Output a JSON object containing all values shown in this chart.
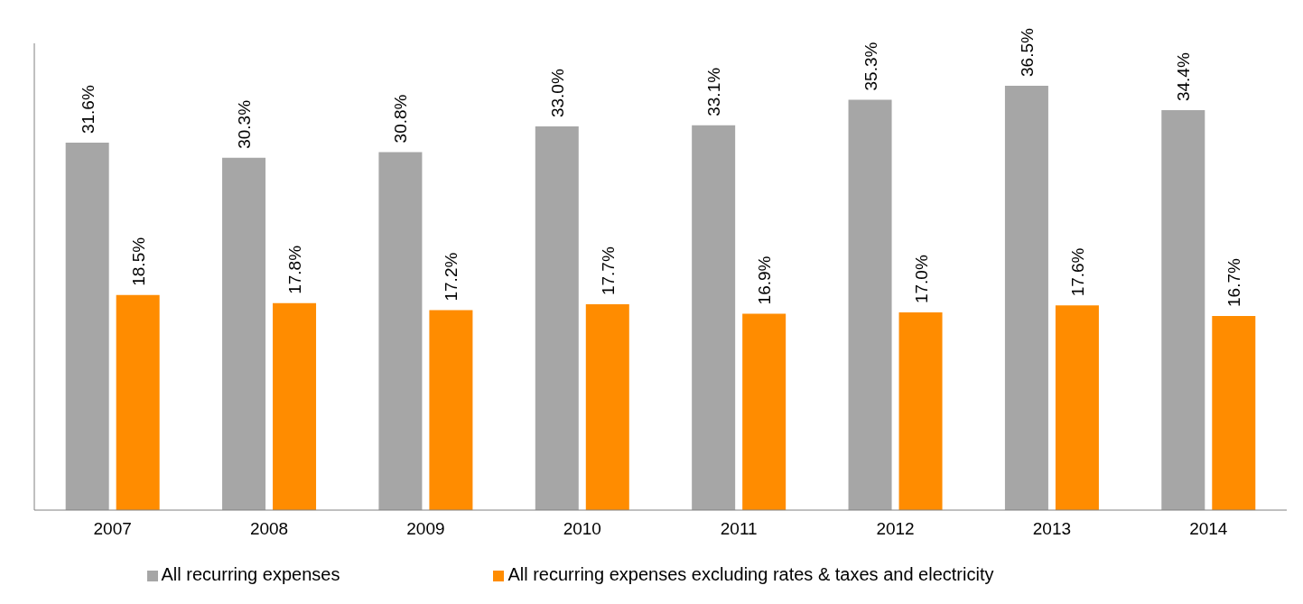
{
  "chart_data": {
    "type": "bar",
    "categories": [
      "2007",
      "2008",
      "2009",
      "2010",
      "2011",
      "2012",
      "2013",
      "2014"
    ],
    "series": [
      {
        "name": "All recurring expenses",
        "color": "#a6a6a6",
        "values": [
          31.6,
          30.3,
          30.8,
          33.0,
          33.1,
          35.3,
          36.5,
          34.4
        ],
        "value_labels": [
          "31.6%",
          "30.3%",
          "30.8%",
          "33.0%",
          "33.1%",
          "35.3%",
          "36.5%",
          "34.4%"
        ]
      },
      {
        "name": "All recurring expenses excluding rates & taxes and electricity",
        "color": "#ff8c00",
        "values": [
          18.5,
          17.8,
          17.2,
          17.7,
          16.9,
          17.0,
          17.6,
          16.7
        ],
        "value_labels": [
          "18.5%",
          "17.8%",
          "17.2%",
          "17.7%",
          "16.9%",
          "17.0%",
          "17.6%",
          "16.7%"
        ]
      }
    ],
    "grid": false,
    "legend": "bottom"
  }
}
